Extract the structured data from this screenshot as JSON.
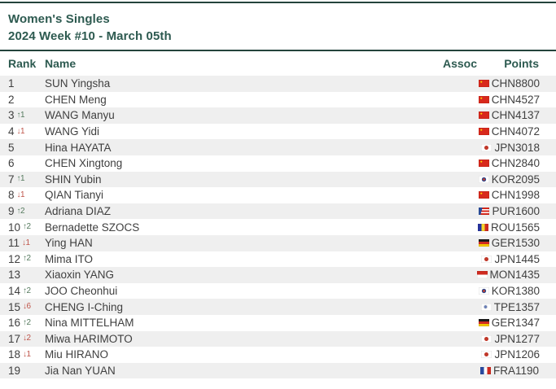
{
  "header": {
    "title": "Women's Singles",
    "subtitle": "2024 Week #10 - March 05th"
  },
  "columns": {
    "rank": "Rank",
    "name": "Name",
    "assoc": "Assoc",
    "points": "Points"
  },
  "colors": {
    "accent_green": "#2d5a50",
    "divider": "#24443c",
    "row_stripe": "#efefef",
    "rank_up": "#557a5e",
    "rank_down": "#bf5449"
  },
  "chart_data": {
    "type": "table",
    "title": "Women's Singles",
    "subtitle": "2024 Week #10 - March 05th",
    "columns": [
      "Rank",
      "Name",
      "Assoc",
      "Points"
    ],
    "rows": [
      {
        "rank": "1",
        "dir": "",
        "change": "",
        "name": "SUN Yingsha",
        "assoc": "CHN",
        "points": "8800"
      },
      {
        "rank": "2",
        "dir": "",
        "change": "",
        "name": "CHEN Meng",
        "assoc": "CHN",
        "points": "4527"
      },
      {
        "rank": "3",
        "dir": "up",
        "change": "1",
        "name": "WANG Manyu",
        "assoc": "CHN",
        "points": "4137"
      },
      {
        "rank": "4",
        "dir": "down",
        "change": "1",
        "name": "WANG Yidi",
        "assoc": "CHN",
        "points": "4072"
      },
      {
        "rank": "5",
        "dir": "",
        "change": "",
        "name": "Hina HAYATA",
        "assoc": "JPN",
        "points": "3018"
      },
      {
        "rank": "6",
        "dir": "",
        "change": "",
        "name": "CHEN Xingtong",
        "assoc": "CHN",
        "points": "2840"
      },
      {
        "rank": "7",
        "dir": "up",
        "change": "1",
        "name": "SHIN Yubin",
        "assoc": "KOR",
        "points": "2095"
      },
      {
        "rank": "8",
        "dir": "down",
        "change": "1",
        "name": "QIAN Tianyi",
        "assoc": "CHN",
        "points": "1998"
      },
      {
        "rank": "9",
        "dir": "up",
        "change": "2",
        "name": "Adriana DIAZ",
        "assoc": "PUR",
        "points": "1600"
      },
      {
        "rank": "10",
        "dir": "up",
        "change": "2",
        "name": "Bernadette SZOCS",
        "assoc": "ROU",
        "points": "1565"
      },
      {
        "rank": "11",
        "dir": "down",
        "change": "1",
        "name": "Ying HAN",
        "assoc": "GER",
        "points": "1530"
      },
      {
        "rank": "12",
        "dir": "up",
        "change": "2",
        "name": "Mima ITO",
        "assoc": "JPN",
        "points": "1445"
      },
      {
        "rank": "13",
        "dir": "",
        "change": "",
        "name": "Xiaoxin YANG",
        "assoc": "MON",
        "points": "1435"
      },
      {
        "rank": "14",
        "dir": "up",
        "change": "2",
        "name": "JOO Cheonhui",
        "assoc": "KOR",
        "points": "1380"
      },
      {
        "rank": "15",
        "dir": "down",
        "change": "6",
        "name": "CHENG I-Ching",
        "assoc": "TPE",
        "points": "1357"
      },
      {
        "rank": "16",
        "dir": "up",
        "change": "2",
        "name": "Nina MITTELHAM",
        "assoc": "GER",
        "points": "1347"
      },
      {
        "rank": "17",
        "dir": "down",
        "change": "2",
        "name": "Miwa HARIMOTO",
        "assoc": "JPN",
        "points": "1277"
      },
      {
        "rank": "18",
        "dir": "down",
        "change": "1",
        "name": "Miu HIRANO",
        "assoc": "JPN",
        "points": "1206"
      },
      {
        "rank": "19",
        "dir": "",
        "change": "",
        "name": "Jia Nan YUAN",
        "assoc": "FRA",
        "points": "1190"
      }
    ]
  }
}
